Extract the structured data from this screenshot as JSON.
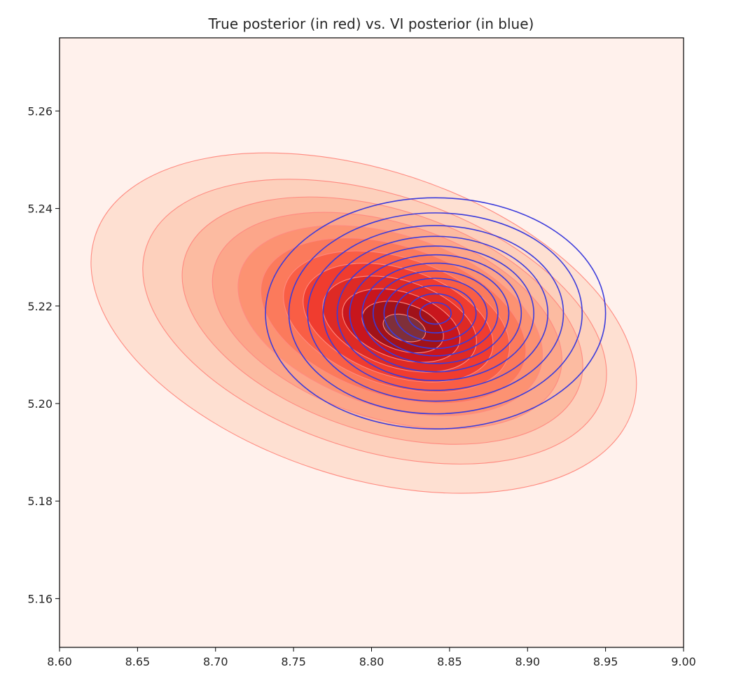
{
  "chart_data": {
    "type": "contour",
    "title": "True posterior (in red) vs. VI posterior (in blue)",
    "xlabel": "",
    "ylabel": "",
    "xlim": [
      8.6,
      9.0
    ],
    "ylim": [
      5.15,
      5.275
    ],
    "xticks": [
      "8.60",
      "8.65",
      "8.70",
      "8.75",
      "8.80",
      "8.85",
      "8.90",
      "8.95",
      "9.00"
    ],
    "yticks": [
      "5.16",
      "5.18",
      "5.20",
      "5.22",
      "5.24",
      "5.26"
    ],
    "grid": false,
    "background_color": "#fff1ec",
    "series": [
      {
        "style": "filled",
        "line_color": "#ff8a80",
        "fill_colors": [
          "#fee0d2",
          "#fdd0bc",
          "#fcbba1",
          "#fca68a",
          "#fc9272",
          "#fb7a5c",
          "#f95e45",
          "#f03c2f",
          "#de2a25",
          "#c8161d",
          "#a11219",
          "#7f2f3a"
        ],
        "levels": [
          {
            "cx": 8.795,
            "cy": 5.2165,
            "rx": 0.181,
            "ry": 0.0315,
            "angle_deg": -18
          },
          {
            "cx": 8.802,
            "cy": 5.2168,
            "rx": 0.154,
            "ry": 0.0262,
            "angle_deg": -18
          },
          {
            "cx": 8.807,
            "cy": 5.217,
            "rx": 0.133,
            "ry": 0.0228,
            "angle_deg": -18
          },
          {
            "cx": 8.81,
            "cy": 5.217,
            "rx": 0.116,
            "ry": 0.02,
            "angle_deg": -18
          },
          {
            "cx": 8.812,
            "cy": 5.217,
            "rx": 0.101,
            "ry": 0.0176,
            "angle_deg": -18
          },
          {
            "cx": 8.814,
            "cy": 5.217,
            "rx": 0.088,
            "ry": 0.0153,
            "angle_deg": -18
          },
          {
            "cx": 8.816,
            "cy": 5.2168,
            "rx": 0.075,
            "ry": 0.0131,
            "angle_deg": -18
          },
          {
            "cx": 8.817,
            "cy": 5.2166,
            "rx": 0.063,
            "ry": 0.011,
            "angle_deg": -18
          },
          {
            "cx": 8.818,
            "cy": 5.2163,
            "rx": 0.051,
            "ry": 0.0089,
            "angle_deg": -18
          },
          {
            "cx": 8.819,
            "cy": 5.216,
            "rx": 0.039,
            "ry": 0.0068,
            "angle_deg": -18
          },
          {
            "cx": 8.82,
            "cy": 5.2157,
            "rx": 0.027,
            "ry": 0.0048,
            "angle_deg": -18
          },
          {
            "cx": 8.821,
            "cy": 5.2155,
            "rx": 0.014,
            "ry": 0.0026,
            "angle_deg": -18
          }
        ]
      },
      {
        "style": "lines",
        "line_color": "#3b3bdb",
        "cx": 8.841,
        "cy": 5.2185,
        "rx": [
          0.109,
          0.094,
          0.082,
          0.072,
          0.063,
          0.055,
          0.047,
          0.04,
          0.033,
          0.026,
          0.018,
          0.01
        ],
        "ry": [
          0.0237,
          0.0206,
          0.018,
          0.0158,
          0.0138,
          0.012,
          0.0103,
          0.0087,
          0.0072,
          0.0057,
          0.004,
          0.0022
        ]
      }
    ]
  }
}
